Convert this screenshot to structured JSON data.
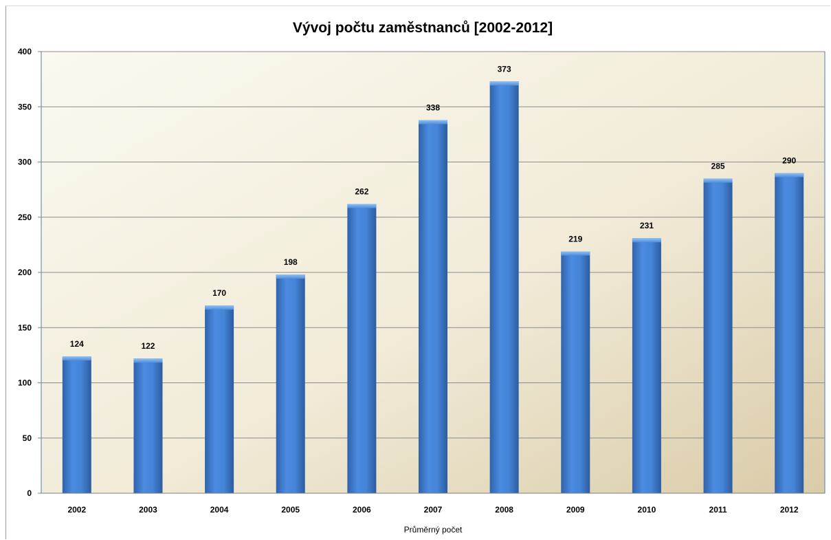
{
  "chart_data": {
    "type": "bar",
    "title": "Vývoj počtu zaměstnanců [2002-2012]",
    "xlabel": "Průměrný počet",
    "ylabel": "",
    "categories": [
      "2002",
      "2003",
      "2004",
      "2005",
      "2006",
      "2007",
      "2008",
      "2009",
      "2010",
      "2011",
      "2012"
    ],
    "values": [
      124,
      122,
      170,
      198,
      262,
      338,
      373,
      219,
      231,
      285,
      290
    ],
    "data_labels": [
      "124",
      "122",
      "170",
      "198",
      "262",
      "338",
      "373",
      "219",
      "231",
      "285",
      "290"
    ],
    "ylim": [
      0,
      400
    ],
    "yticks": [
      0,
      50,
      100,
      150,
      200,
      250,
      300,
      350,
      400
    ],
    "ytick_labels": [
      "0",
      "50",
      "100",
      "150",
      "200",
      "250",
      "300",
      "350",
      "400"
    ],
    "grid": true,
    "legend": "none",
    "colors": {
      "bar": "#3f7fd0",
      "bar_dark": "#2f63ab",
      "bar_light": "#6aa6ec",
      "plot_bg_light": "#fbf9f0",
      "plot_bg_dark": "#ddd0b2",
      "plot_border": "#4a7ebb",
      "grid": "#8c8c8c"
    }
  }
}
